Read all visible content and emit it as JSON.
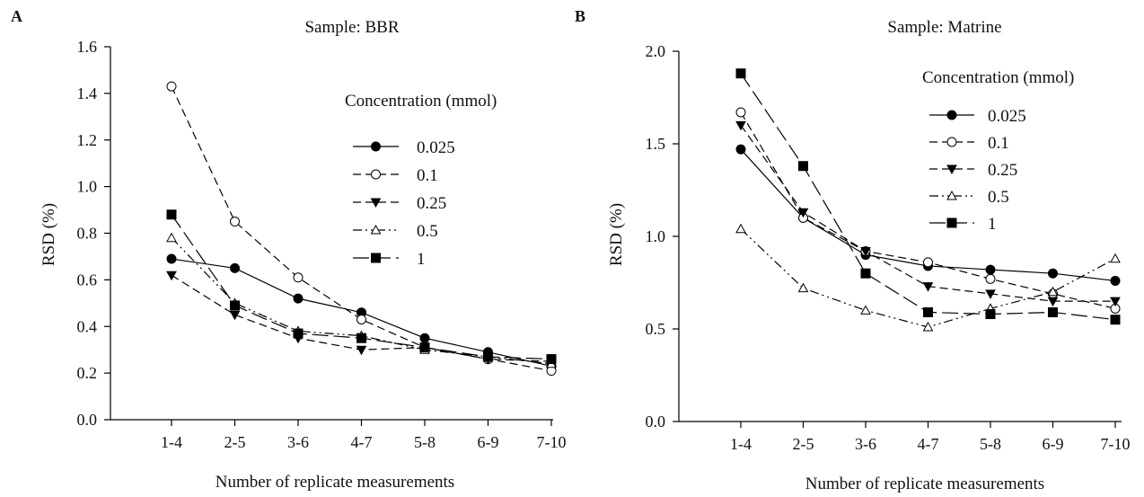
{
  "chart_data": [
    {
      "type": "line",
      "panel_label": "A",
      "title": "Sample:  BBR",
      "xlabel": "Number of replicate measurements",
      "ylabel": "RSD (%)",
      "categories": [
        "1-4",
        "2-5",
        "3-6",
        "4-7",
        "5-8",
        "6-9",
        "7-10"
      ],
      "ylim": [
        0,
        1.6
      ],
      "yticks": [
        "0.0",
        "0.2",
        "0.4",
        "0.6",
        "0.8",
        "1.0",
        "1.2",
        "1.4",
        "1.6"
      ],
      "legend_title": "Concentration (mmol)",
      "legend_position": "right",
      "grid": false,
      "series": [
        {
          "name": "0.025",
          "marker": "filled-circle",
          "line": "solid",
          "values": [
            0.69,
            0.65,
            0.52,
            0.46,
            0.35,
            0.29,
            0.23
          ]
        },
        {
          "name": "0.1",
          "marker": "open-circle",
          "line": "dashed",
          "values": [
            1.43,
            0.85,
            0.61,
            0.43,
            0.31,
            0.26,
            0.21
          ]
        },
        {
          "name": "0.25",
          "marker": "filled-triangle-down",
          "line": "dashed",
          "values": [
            0.62,
            0.45,
            0.35,
            0.3,
            0.31,
            0.26,
            0.25
          ]
        },
        {
          "name": "0.5",
          "marker": "open-triangle-up",
          "line": "dash-dot-dot",
          "values": [
            0.78,
            0.5,
            0.38,
            0.36,
            0.3,
            0.27,
            0.24
          ]
        },
        {
          "name": "1",
          "marker": "filled-square",
          "line": "long-dash",
          "values": [
            0.88,
            0.49,
            0.37,
            0.35,
            0.31,
            0.27,
            0.26
          ]
        }
      ]
    },
    {
      "type": "line",
      "panel_label": "B",
      "title": "Sample:  Matrine",
      "xlabel": "Number of replicate measurements",
      "ylabel": "RSD (%)",
      "categories": [
        "1-4",
        "2-5",
        "3-6",
        "4-7",
        "5-8",
        "6-9",
        "7-10"
      ],
      "ylim": [
        0,
        2.0
      ],
      "yticks": [
        "0.0",
        "0.5",
        "1.0",
        "1.5",
        "2.0"
      ],
      "legend_title": "Concentration (mmol)",
      "legend_position": "top-right",
      "grid": false,
      "series": [
        {
          "name": "0.025",
          "marker": "filled-circle",
          "line": "solid",
          "values": [
            1.47,
            1.1,
            0.9,
            0.84,
            0.82,
            0.8,
            0.76
          ]
        },
        {
          "name": "0.1",
          "marker": "open-circle",
          "line": "dashed",
          "values": [
            1.67,
            1.1,
            0.92,
            0.86,
            0.77,
            0.69,
            0.61
          ]
        },
        {
          "name": "0.25",
          "marker": "filled-triangle-down",
          "line": "dashed",
          "values": [
            1.6,
            1.13,
            0.92,
            0.73,
            0.69,
            0.65,
            0.65
          ]
        },
        {
          "name": "0.5",
          "marker": "open-triangle-up",
          "line": "dash-dot-dot",
          "values": [
            1.04,
            0.72,
            0.6,
            0.51,
            0.61,
            0.7,
            0.88
          ]
        },
        {
          "name": "1",
          "marker": "filled-square",
          "line": "long-dash",
          "values": [
            1.88,
            1.38,
            0.8,
            0.59,
            0.58,
            0.59,
            0.55
          ]
        }
      ]
    }
  ]
}
